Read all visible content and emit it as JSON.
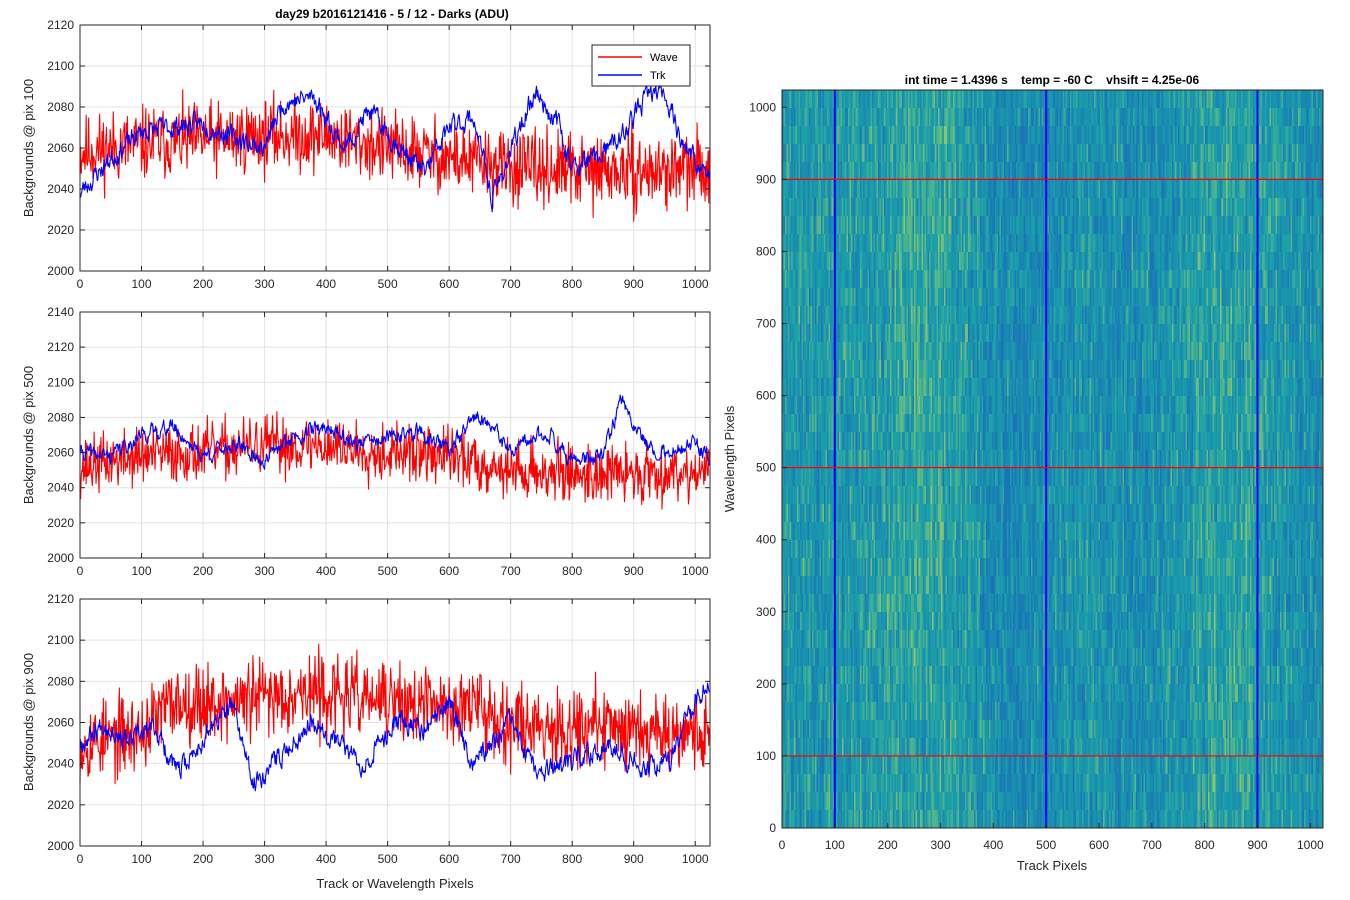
{
  "figure": {
    "suptitle": "day29 b2016121416 - 5 / 12 - Darks (ADU)"
  },
  "chart_data": [
    {
      "type": "line",
      "ylabel": "Backgrounds @ pix 100",
      "xlabel": "",
      "xlim": [
        0,
        1024
      ],
      "ylim": [
        2000,
        2120
      ],
      "xticks": [
        0,
        100,
        200,
        300,
        400,
        500,
        600,
        700,
        800,
        900,
        1000
      ],
      "yticks": [
        2000,
        2020,
        2040,
        2060,
        2080,
        2100,
        2120
      ],
      "grid": true,
      "legend": {
        "placement": "top-right",
        "entries": [
          "Wave",
          "Trk"
        ]
      },
      "series": [
        {
          "name": "Wave",
          "color": "#ff0000",
          "mean": 2059,
          "noise": 13,
          "seed": 11,
          "anchors": [
            [
              0,
              2058
            ],
            [
              100,
              2062
            ],
            [
              200,
              2064
            ],
            [
              300,
              2066
            ],
            [
              400,
              2066
            ],
            [
              500,
              2060
            ],
            [
              600,
              2055
            ],
            [
              700,
              2050
            ],
            [
              800,
              2049
            ],
            [
              900,
              2048
            ],
            [
              1024,
              2050
            ]
          ]
        },
        {
          "name": "Trk",
          "color": "#0000ff",
          "mean": 2060,
          "noise": 4,
          "seed": 23,
          "anchors": [
            [
              0,
              2038
            ],
            [
              50,
              2055
            ],
            [
              100,
              2068
            ],
            [
              150,
              2070
            ],
            [
              200,
              2072
            ],
            [
              250,
              2065
            ],
            [
              300,
              2060
            ],
            [
              330,
              2082
            ],
            [
              380,
              2085
            ],
            [
              430,
              2060
            ],
            [
              470,
              2078
            ],
            [
              520,
              2060
            ],
            [
              560,
              2048
            ],
            [
              600,
              2070
            ],
            [
              640,
              2075
            ],
            [
              670,
              2035
            ],
            [
              700,
              2058
            ],
            [
              740,
              2088
            ],
            [
              780,
              2070
            ],
            [
              800,
              2050
            ],
            [
              840,
              2055
            ],
            [
              880,
              2065
            ],
            [
              920,
              2085
            ],
            [
              950,
              2088
            ],
            [
              980,
              2062
            ],
            [
              1024,
              2045
            ]
          ]
        }
      ]
    },
    {
      "type": "line",
      "ylabel": "Backgrounds @ pix 500",
      "xlabel": "",
      "xlim": [
        0,
        1024
      ],
      "ylim": [
        2000,
        2140
      ],
      "xticks": [
        0,
        100,
        200,
        300,
        400,
        500,
        600,
        700,
        800,
        900,
        1000
      ],
      "yticks": [
        2000,
        2020,
        2040,
        2060,
        2080,
        2100,
        2120,
        2140
      ],
      "grid": true,
      "series": [
        {
          "name": "Wave",
          "color": "#ff0000",
          "mean": 2056,
          "noise": 12,
          "seed": 37,
          "anchors": [
            [
              0,
              2052
            ],
            [
              100,
              2058
            ],
            [
              200,
              2060
            ],
            [
              300,
              2064
            ],
            [
              400,
              2064
            ],
            [
              500,
              2060
            ],
            [
              600,
              2058
            ],
            [
              700,
              2050
            ],
            [
              800,
              2048
            ],
            [
              900,
              2048
            ],
            [
              1024,
              2050
            ]
          ]
        },
        {
          "name": "Trk",
          "color": "#0000ff",
          "mean": 2060,
          "noise": 3.5,
          "seed": 41,
          "anchors": [
            [
              0,
              2060
            ],
            [
              50,
              2058
            ],
            [
              100,
              2070
            ],
            [
              150,
              2075
            ],
            [
              200,
              2058
            ],
            [
              250,
              2065
            ],
            [
              300,
              2055
            ],
            [
              350,
              2070
            ],
            [
              400,
              2075
            ],
            [
              450,
              2065
            ],
            [
              500,
              2068
            ],
            [
              550,
              2072
            ],
            [
              600,
              2062
            ],
            [
              650,
              2082
            ],
            [
              700,
              2060
            ],
            [
              760,
              2072
            ],
            [
              800,
              2055
            ],
            [
              850,
              2058
            ],
            [
              880,
              2090
            ],
            [
              920,
              2065
            ],
            [
              950,
              2060
            ],
            [
              1000,
              2065
            ],
            [
              1024,
              2055
            ]
          ]
        }
      ]
    },
    {
      "type": "line",
      "ylabel": "Backgrounds @ pix 900",
      "xlabel": "Track or Wavelength Pixels",
      "xlim": [
        0,
        1024
      ],
      "ylim": [
        2000,
        2120
      ],
      "xticks": [
        0,
        100,
        200,
        300,
        400,
        500,
        600,
        700,
        800,
        900,
        1000
      ],
      "yticks": [
        2000,
        2020,
        2040,
        2060,
        2080,
        2100,
        2120
      ],
      "grid": true,
      "series": [
        {
          "name": "Wave",
          "color": "#ff0000",
          "mean": 2064,
          "noise": 14,
          "seed": 53,
          "anchors": [
            [
              0,
              2050
            ],
            [
              100,
              2055
            ],
            [
              150,
              2070
            ],
            [
              250,
              2070
            ],
            [
              350,
              2075
            ],
            [
              450,
              2072
            ],
            [
              550,
              2068
            ],
            [
              650,
              2068
            ],
            [
              700,
              2060
            ],
            [
              800,
              2058
            ],
            [
              900,
              2058
            ],
            [
              1024,
              2055
            ]
          ]
        },
        {
          "name": "Trk",
          "color": "#0000ff",
          "mean": 2048,
          "noise": 4,
          "seed": 67,
          "anchors": [
            [
              0,
              2050
            ],
            [
              40,
              2060
            ],
            [
              80,
              2050
            ],
            [
              120,
              2058
            ],
            [
              160,
              2035
            ],
            [
              220,
              2060
            ],
            [
              250,
              2068
            ],
            [
              280,
              2030
            ],
            [
              330,
              2045
            ],
            [
              380,
              2062
            ],
            [
              420,
              2050
            ],
            [
              460,
              2040
            ],
            [
              520,
              2062
            ],
            [
              560,
              2055
            ],
            [
              600,
              2070
            ],
            [
              640,
              2040
            ],
            [
              700,
              2060
            ],
            [
              740,
              2035
            ],
            [
              800,
              2040
            ],
            [
              860,
              2050
            ],
            [
              920,
              2038
            ],
            [
              960,
              2042
            ],
            [
              1000,
              2072
            ],
            [
              1024,
              2078
            ]
          ]
        }
      ]
    },
    {
      "type": "heatmap",
      "title": "int time = 1.4396 s    temp = -60 C    vhsift = 4.25e-06",
      "xlabel": "Track Pixels",
      "ylabel": "Wavelength Pixels",
      "xlim": [
        0,
        1024
      ],
      "ylim": [
        0,
        1024
      ],
      "xticks": [
        0,
        100,
        200,
        300,
        400,
        500,
        600,
        700,
        800,
        900,
        1000
      ],
      "yticks": [
        0,
        100,
        200,
        300,
        400,
        500,
        600,
        700,
        800,
        900,
        1000
      ],
      "colormap": "parula",
      "colors": {
        "low": "#1a74b8",
        "mid": "#1aa2a8",
        "high": "#8ec66a"
      },
      "vertical_markers": {
        "values": [
          100,
          500,
          900
        ],
        "color": "#0000ff"
      },
      "horizontal_markers": {
        "values": [
          100,
          500,
          900
        ],
        "color": "#ff0000"
      }
    }
  ]
}
